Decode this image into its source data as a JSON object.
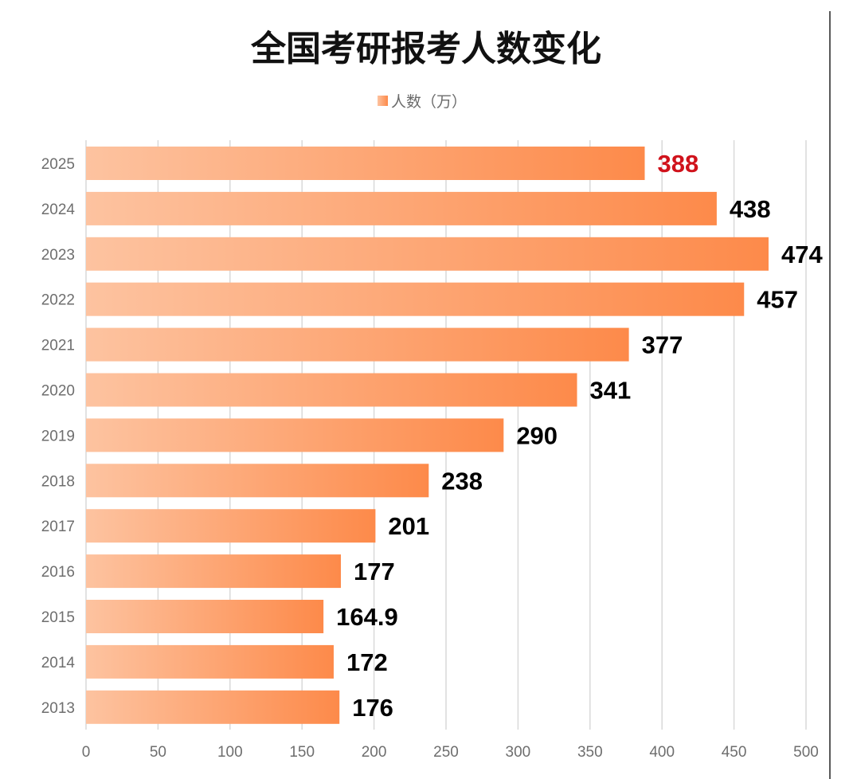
{
  "chart_data": {
    "type": "bar",
    "orientation": "horizontal",
    "title": "全国考研报考人数变化",
    "categories": [
      "2025",
      "2024",
      "2023",
      "2022",
      "2021",
      "2020",
      "2019",
      "2018",
      "2017",
      "2016",
      "2015",
      "2014",
      "2013"
    ],
    "series": [
      {
        "name": "人数（万）",
        "values": [
          388,
          438,
          474,
          457,
          377,
          341,
          290,
          238,
          201,
          177,
          164.9,
          172,
          176
        ]
      }
    ],
    "value_labels": [
      "388",
      "438",
      "474",
      "457",
      "377",
      "341",
      "290",
      "238",
      "201",
      "177",
      "164.9",
      "172",
      "176"
    ],
    "highlight_index": 0,
    "xlim": [
      0,
      500
    ],
    "xticks": [
      0,
      50,
      100,
      150,
      200,
      250,
      300,
      350,
      400,
      450,
      500
    ],
    "grid": true,
    "legend_position": "top-center",
    "colors": {
      "bar_start": "#fdc3a0",
      "bar_end": "#fd8a4a",
      "label": "#000000",
      "highlight_label": "#d0121b",
      "grid": "#d9d9d9"
    }
  }
}
